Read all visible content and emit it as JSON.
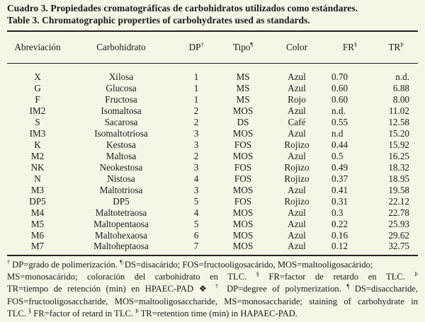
{
  "caption": {
    "es": "Cuadro 3. Propiedades cromatográficas de carbohidratos utilizados como estándares.",
    "en": "Table 3. Chromatographic properties of carbohydrates used as standards."
  },
  "headers": {
    "abreviacion": "Abreviación",
    "carbohidrato": "Carbohidrato",
    "dp": "DP",
    "dp_mark": "†",
    "tipo": "Tipo",
    "tipo_mark": "¶",
    "color": "Color",
    "fr": "FR",
    "fr_mark": "§",
    "tr": "TR",
    "tr_mark": "Þ"
  },
  "rows": [
    {
      "abr": "X",
      "car": "Xilosa",
      "dp": "1",
      "tipo": "MS",
      "color": "Azul",
      "fr": "0.70",
      "tr": "n.d."
    },
    {
      "abr": "G",
      "car": "Glucosa",
      "dp": "1",
      "tipo": "MS",
      "color": "Azul",
      "fr": "0.60",
      "tr": "6.88"
    },
    {
      "abr": "F",
      "car": "Fructosa",
      "dp": "1",
      "tipo": "MS",
      "color": "Rojo",
      "fr": "0.60",
      "tr": "8.00"
    },
    {
      "abr": "IM2",
      "car": "Isomaltosa",
      "dp": "2",
      "tipo": "MOS",
      "color": "Azul",
      "fr": "n.d.",
      "tr": "11.02"
    },
    {
      "abr": "S",
      "car": "Sacarosa",
      "dp": "2",
      "tipo": "DS",
      "color": "Café",
      "fr": "0.55",
      "tr": "12.58"
    },
    {
      "abr": "IM3",
      "car": "Isomaltotriosa",
      "dp": "3",
      "tipo": "MOS",
      "color": "Azul",
      "fr": "n.d",
      "tr": "15.20"
    },
    {
      "abr": "K",
      "car": "Kestosa",
      "dp": "3",
      "tipo": "FOS",
      "color": "Rojizo",
      "fr": "0.44",
      "tr": "15.92"
    },
    {
      "abr": "M2",
      "car": "Maltosa",
      "dp": "2",
      "tipo": "MOS",
      "color": "Azul",
      "fr": "0.5",
      "tr": "16.25"
    },
    {
      "abr": "NK",
      "car": "Neokestosa",
      "dp": "3",
      "tipo": "FOS",
      "color": "Rojizo",
      "fr": "0.49",
      "tr": "18.32"
    },
    {
      "abr": "N",
      "car": "Nistosa",
      "dp": "4",
      "tipo": "FOS",
      "color": "Rojizo",
      "fr": "0.37",
      "tr": "18.95"
    },
    {
      "abr": "M3",
      "car": "Maltotriosa",
      "dp": "3",
      "tipo": "MOS",
      "color": "Azul",
      "fr": "0.41",
      "tr": "19.58"
    },
    {
      "abr": "DP5",
      "car": "DP5",
      "dp": "5",
      "tipo": "FOS",
      "color": "Rojizo",
      "fr": "0.31",
      "tr": "22.12"
    },
    {
      "abr": "M4",
      "car": "Maltotetraosa",
      "dp": "4",
      "tipo": "MOS",
      "color": "Azul",
      "fr": "0.3",
      "tr": "22.78"
    },
    {
      "abr": "M5",
      "car": "Maltopentaosa",
      "dp": "5",
      "tipo": "MOS",
      "color": "Azul",
      "fr": "0.22",
      "tr": "25.93"
    },
    {
      "abr": "M6",
      "car": "Maltohexaosa",
      "dp": "6",
      "tipo": "MOS",
      "color": "Azul",
      "fr": "0.16",
      "tr": "29.62"
    },
    {
      "abr": "M7",
      "car": "Maltoheptaosa",
      "dp": "7",
      "tipo": "MOS",
      "color": "Azul",
      "fr": "0.12",
      "tr": "32.75"
    }
  ],
  "footnote": {
    "line1_mark": "†",
    "line1a": "DP=grado de polimerización.",
    "line1_mark2": "¶",
    "line1b": "DS=disacárido; FOS=fructooligosacárido, MOS=maltooligosacárido;",
    "line2a": "MS=monosacárido; coloración del carbohidrato en TLC.",
    "line2_mark": "§",
    "line2b": "FR=factor de retardo en TLC.",
    "line2_mark2": "Þ",
    "line3a": "TR=tiempo de retención (min) en HPAEC-PAD",
    "line3_sep": "❖",
    "line3_mark": "†",
    "line3b": "DP=degree of polymerization.",
    "line3_mark2": "¶",
    "line3c": "DS=disaccharide,",
    "line4": "FOS=fructooligosaccharide, MOS=maltooligosaccharide, MS=monosaccharide; staining of carbohydrate in",
    "line5a": "TLC.",
    "line5_mark": "§",
    "line5b": "FR=factor of retard in TLC.",
    "line5_mark2": "Þ",
    "line5c": "TR=retention time (min) in HAPAEC-PAD."
  },
  "colors": {
    "background": "#f6f5e6",
    "text": "#1a1a1a",
    "rule": "#222222"
  }
}
